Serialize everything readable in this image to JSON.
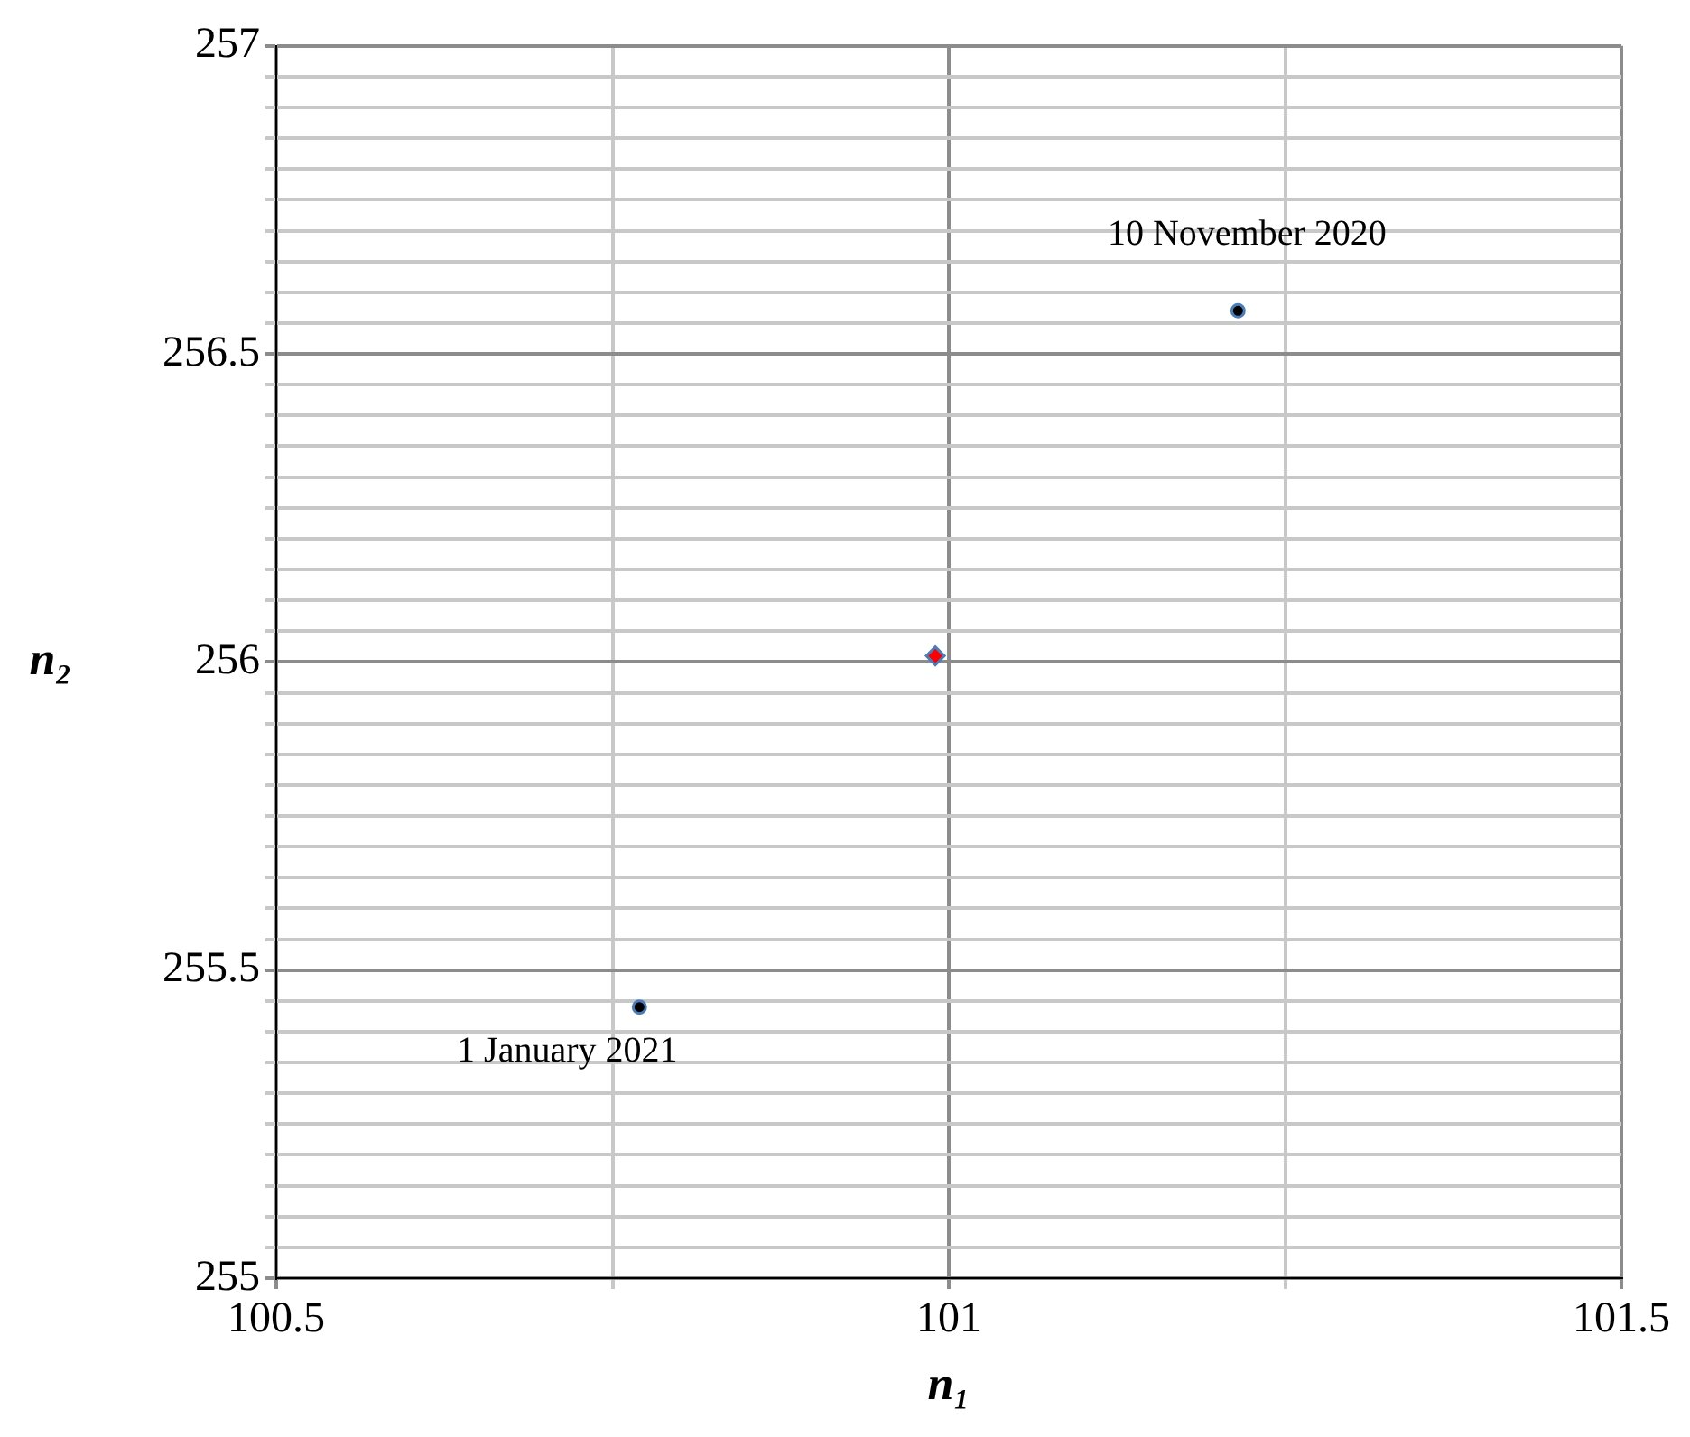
{
  "chart_data": {
    "type": "scatter",
    "xlabel": "n₁",
    "ylabel": "n₂",
    "series": [
      {
        "color": "#000000",
        "marker": "circle",
        "x": [
          101.215,
          100.77
        ],
        "values": [
          256.57,
          255.44
        ]
      },
      {
        "color": "#ff0000",
        "marker": "diamond",
        "x": [
          100.99
        ],
        "values": [
          256.01
        ]
      }
    ],
    "annotations": [
      {
        "text": "10 November 2020",
        "x": 101.215,
        "y": 256.57
      },
      {
        "text": "1 January 2021",
        "x": 100.77,
        "y": 255.44
      }
    ],
    "xlim": [
      100.5,
      101.5
    ],
    "xticks": [
      100.5,
      {
        "value": 100.75,
        "label": null
      },
      101,
      {
        "value": 101.25,
        "label": null
      },
      101.5
    ],
    "ylim": [
      255,
      257
    ],
    "yticks": [
      255,
      {
        "value": 255.05,
        "label": null
      },
      {
        "value": 255.1,
        "label": null
      },
      {
        "value": 255.15,
        "label": null
      },
      {
        "value": 255.2,
        "label": null
      },
      {
        "value": 255.25,
        "label": null
      },
      {
        "value": 255.3,
        "label": null
      },
      {
        "value": 255.35,
        "label": null
      },
      {
        "value": 255.4,
        "label": null
      },
      {
        "value": 255.45,
        "label": null
      },
      255.5,
      {
        "value": 255.55,
        "label": null
      },
      {
        "value": 255.6,
        "label": null
      },
      {
        "value": 255.65,
        "label": null
      },
      {
        "value": 255.7,
        "label": null
      },
      {
        "value": 255.75,
        "label": null
      },
      {
        "value": 255.8,
        "label": null
      },
      {
        "value": 255.85,
        "label": null
      },
      {
        "value": 255.9,
        "label": null
      },
      {
        "value": 255.95,
        "label": null
      },
      256,
      {
        "value": 256.05,
        "label": null
      },
      {
        "value": 256.1,
        "label": null
      },
      {
        "value": 256.15,
        "label": null
      },
      {
        "value": 256.2,
        "label": null
      },
      {
        "value": 256.25,
        "label": null
      },
      {
        "value": 256.3,
        "label": null
      },
      {
        "value": 256.35,
        "label": null
      },
      {
        "value": 256.4,
        "label": null
      },
      {
        "value": 256.45,
        "label": null
      },
      256.5,
      {
        "value": 256.55,
        "label": null
      },
      {
        "value": 256.6,
        "label": null
      },
      {
        "value": 256.65,
        "label": null
      },
      {
        "value": 256.7,
        "label": null
      },
      {
        "value": 256.75,
        "label": null
      },
      {
        "value": 256.8,
        "label": null
      },
      {
        "value": 256.85,
        "label": null
      },
      {
        "value": 256.9,
        "label": null
      },
      {
        "value": 256.95,
        "label": null
      },
      257
    ],
    "grid": true,
    "legend": false
  }
}
